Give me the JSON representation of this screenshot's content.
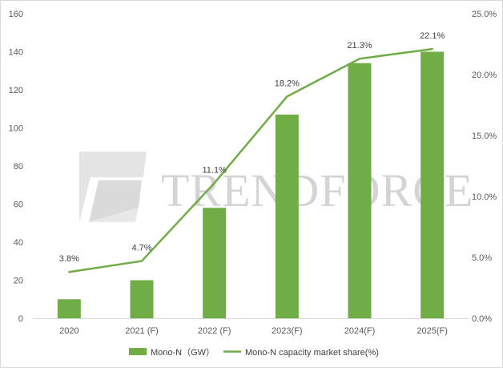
{
  "chart_data": {
    "type": "bar+line",
    "categories": [
      "2020",
      "2021 (F)",
      "2022 (F)",
      "2023(F)",
      "2024(F)",
      "2025(F)"
    ],
    "series": [
      {
        "name": "Mono-N（GW）",
        "type": "bar",
        "axis": "left",
        "values": [
          10,
          20,
          58,
          107,
          134,
          140
        ]
      },
      {
        "name": "Mono-N capacity market share(%)",
        "type": "line",
        "axis": "right",
        "values": [
          3.8,
          4.7,
          11.1,
          18.2,
          21.3,
          22.1
        ],
        "labels": [
          "3.8%",
          "4.7%",
          "11.1%",
          "18.2%",
          "21.3%",
          "22.1%"
        ]
      }
    ],
    "y_left": {
      "min": 0,
      "max": 160,
      "ticks": [
        "0",
        "20",
        "40",
        "60",
        "80",
        "100",
        "120",
        "140",
        "160"
      ]
    },
    "y_right": {
      "min": 0,
      "max": 25,
      "ticks": [
        "0.0%",
        "5.0%",
        "10.0%",
        "15.0%",
        "20.0%",
        "25.0%"
      ]
    },
    "grid": false,
    "legend_position": "bottom",
    "colors": {
      "bar": "#70ad47",
      "line": "#70ad47"
    }
  },
  "watermark": {
    "text": "TRENDFORCE"
  }
}
